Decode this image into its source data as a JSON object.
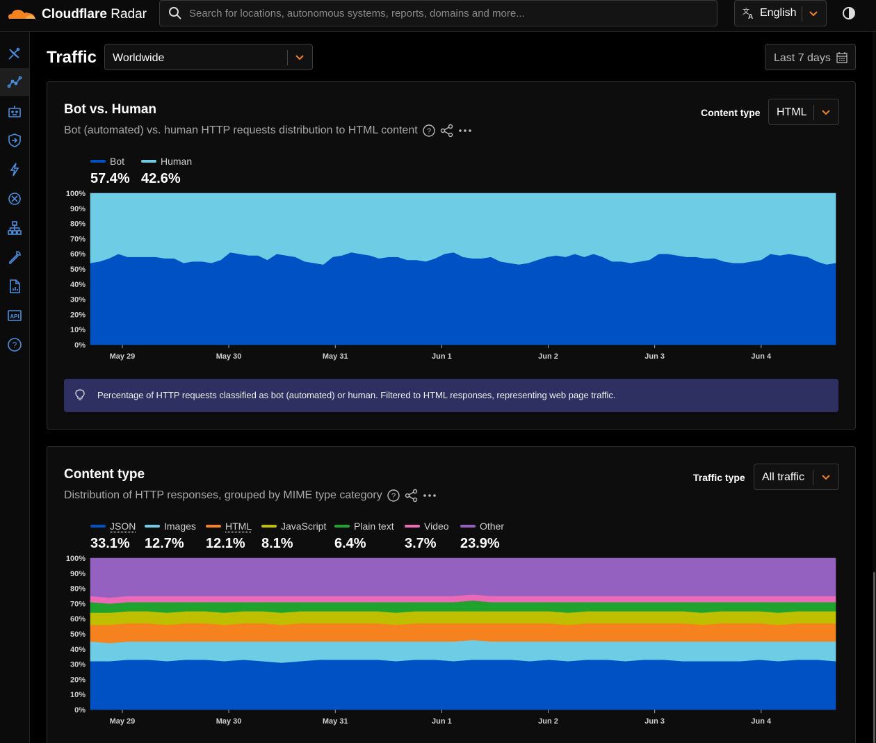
{
  "app": {
    "brand_main": "Cloudflare",
    "brand_sub": " Radar",
    "search_placeholder": "Search for locations, autonomous systems, reports, domains and more...",
    "language": "English",
    "accent_color": "#f6821f"
  },
  "sidebar": {
    "items": [
      {
        "icon": "satellite-dish-icon",
        "active": false
      },
      {
        "icon": "traffic-trend-icon",
        "active": true
      },
      {
        "icon": "robot-icon",
        "active": false
      },
      {
        "icon": "shield-arrow-icon",
        "active": false
      },
      {
        "icon": "lightning-icon",
        "active": false
      },
      {
        "icon": "connectivity-icon",
        "active": false
      },
      {
        "icon": "network-tree-icon",
        "active": false
      },
      {
        "icon": "wrench-icon",
        "active": false
      },
      {
        "icon": "report-icon",
        "active": false
      },
      {
        "icon": "api-icon",
        "active": false
      },
      {
        "icon": "help-icon",
        "active": false
      }
    ]
  },
  "page": {
    "title": "Traffic",
    "location": "Worldwide",
    "date_range": "Last 7 days"
  },
  "bot_card": {
    "title": "Bot vs. Human",
    "subtitle": "Bot (automated) vs. human HTTP requests distribution to HTML content",
    "filter_label": "Content type",
    "filter_value": "HTML",
    "legend": [
      {
        "name": "Bot",
        "pct": "57.4%",
        "color": "#0051c3"
      },
      {
        "name": "Human",
        "pct": "42.6%",
        "color": "#6ecce5"
      }
    ],
    "info": "Percentage of HTTP requests classified as bot (automated) or human. Filtered to HTML responses, representing web page traffic."
  },
  "content_card": {
    "title": "Content type",
    "subtitle": "Distribution of HTTP responses, grouped by MIME type category",
    "filter_label": "Traffic type",
    "filter_value": "All traffic",
    "legend": [
      {
        "name": "JSON",
        "pct": "33.1%",
        "color": "#0051c3",
        "dotted": true
      },
      {
        "name": "Images",
        "pct": "12.7%",
        "color": "#6ecce5",
        "dotted": false
      },
      {
        "name": "HTML",
        "pct": "12.1%",
        "color": "#f6821f",
        "dotted": true
      },
      {
        "name": "JavaScript",
        "pct": "8.1%",
        "color": "#bfbf00",
        "dotted": false
      },
      {
        "name": "Plain text",
        "pct": "6.4%",
        "color": "#1fa32e",
        "dotted": false
      },
      {
        "name": "Video",
        "pct": "3.7%",
        "color": "#ec69b8",
        "dotted": false
      },
      {
        "name": "Other",
        "pct": "23.9%",
        "color": "#9461c1",
        "dotted": false
      }
    ]
  },
  "chart_data": [
    {
      "type": "area",
      "stacked": true,
      "x_ticks": [
        "May 29",
        "May 30",
        "May 31",
        "Jun 1",
        "Jun 2",
        "Jun 3",
        "Jun 4"
      ],
      "y_ticks": [
        "0%",
        "10%",
        "20%",
        "30%",
        "40%",
        "50%",
        "60%",
        "70%",
        "80%",
        "90%",
        "100%"
      ],
      "ylim": [
        0,
        100
      ],
      "x_tick_positions_days": [
        0.3,
        1.3,
        2.3,
        3.3,
        4.3,
        5.3,
        6.3
      ],
      "days_span": 7,
      "series": [
        {
          "name": "Bot",
          "color": "#0051c3",
          "values": [
            54,
            55,
            57,
            60,
            58,
            58,
            58,
            58,
            57,
            57,
            54,
            55,
            55,
            54,
            56,
            61,
            60,
            59,
            59,
            56,
            60,
            59,
            58,
            55,
            54,
            53,
            58,
            59,
            61,
            60,
            59,
            57,
            58,
            58,
            56,
            56,
            55,
            57,
            60,
            61,
            58,
            57,
            57,
            58,
            55,
            54,
            53,
            54,
            56,
            58,
            59,
            58,
            60,
            58,
            60,
            58,
            55,
            55,
            54,
            55,
            56,
            60,
            60,
            59,
            58,
            58,
            57,
            57,
            55,
            54,
            54,
            55,
            56,
            60,
            59,
            60,
            59,
            58,
            55,
            53,
            54
          ]
        },
        {
          "name": "Human",
          "color": "#6ecce5",
          "values": [
            46,
            45,
            43,
            40,
            42,
            42,
            42,
            42,
            43,
            43,
            46,
            45,
            45,
            46,
            44,
            39,
            40,
            41,
            41,
            44,
            40,
            41,
            42,
            45,
            46,
            47,
            42,
            41,
            39,
            40,
            41,
            43,
            42,
            42,
            44,
            44,
            45,
            43,
            40,
            39,
            42,
            43,
            43,
            42,
            45,
            46,
            47,
            46,
            44,
            42,
            41,
            42,
            40,
            42,
            40,
            42,
            45,
            45,
            46,
            45,
            44,
            40,
            40,
            41,
            42,
            42,
            43,
            43,
            45,
            46,
            46,
            45,
            44,
            40,
            41,
            40,
            41,
            42,
            45,
            47,
            46
          ]
        }
      ]
    },
    {
      "type": "area",
      "stacked": true,
      "x_ticks": [
        "May 29",
        "May 30",
        "May 31",
        "Jun 1",
        "Jun 2",
        "Jun 3",
        "Jun 4"
      ],
      "y_ticks": [
        "0%",
        "10%",
        "20%",
        "30%",
        "40%",
        "50%",
        "60%",
        "70%",
        "80%",
        "90%",
        "100%"
      ],
      "ylim": [
        0,
        100
      ],
      "x_tick_positions_days": [
        0.3,
        1.3,
        2.3,
        3.3,
        4.3,
        5.3,
        6.3
      ],
      "days_span": 7,
      "series": [
        {
          "name": "JSON",
          "color": "#0051c3",
          "values": [
            32,
            32,
            33,
            33,
            32,
            33,
            33,
            32,
            33,
            32,
            31,
            32,
            33,
            33,
            33,
            33,
            32,
            33,
            33,
            32,
            33,
            33,
            33,
            32,
            33,
            32,
            33,
            33,
            32,
            33,
            33,
            32,
            32,
            32,
            32,
            33,
            32,
            33,
            33,
            32
          ]
        },
        {
          "name": "Images",
          "color": "#6ecce5",
          "values": [
            13,
            12,
            12,
            12,
            13,
            12,
            12,
            13,
            12,
            13,
            14,
            13,
            12,
            12,
            12,
            12,
            13,
            12,
            12,
            13,
            13,
            12,
            12,
            13,
            12,
            13,
            12,
            12,
            13,
            12,
            12,
            13,
            13,
            13,
            13,
            12,
            13,
            12,
            12,
            13
          ]
        },
        {
          "name": "HTML",
          "color": "#f6821f",
          "values": [
            11,
            12,
            12,
            12,
            11,
            12,
            12,
            11,
            12,
            12,
            11,
            12,
            12,
            12,
            12,
            12,
            11,
            12,
            12,
            12,
            11,
            12,
            12,
            12,
            12,
            11,
            12,
            12,
            12,
            12,
            12,
            12,
            11,
            12,
            12,
            12,
            11,
            12,
            12,
            12
          ]
        },
        {
          "name": "JavaScript",
          "color": "#bfbf00",
          "values": [
            8,
            8,
            8,
            8,
            8,
            8,
            8,
            8,
            8,
            8,
            8,
            8,
            8,
            8,
            8,
            8,
            8,
            8,
            8,
            8,
            8,
            8,
            8,
            8,
            8,
            8,
            8,
            8,
            8,
            8,
            8,
            8,
            8,
            8,
            8,
            8,
            8,
            8,
            8,
            8
          ]
        },
        {
          "name": "Plain text",
          "color": "#1fa32e",
          "values": [
            7,
            6,
            6,
            6,
            7,
            6,
            6,
            7,
            6,
            6,
            7,
            6,
            6,
            6,
            6,
            6,
            7,
            6,
            6,
            6,
            7,
            6,
            6,
            6,
            6,
            7,
            6,
            6,
            6,
            6,
            6,
            6,
            7,
            6,
            6,
            6,
            7,
            6,
            6,
            6
          ]
        },
        {
          "name": "Video",
          "color": "#ec69b8",
          "values": [
            4,
            4,
            4,
            4,
            4,
            4,
            4,
            4,
            4,
            4,
            4,
            4,
            4,
            4,
            4,
            4,
            4,
            4,
            4,
            4,
            4,
            4,
            4,
            4,
            4,
            4,
            4,
            4,
            4,
            4,
            4,
            4,
            4,
            4,
            4,
            4,
            4,
            4,
            4,
            4
          ]
        },
        {
          "name": "Other",
          "color": "#9461c1",
          "values": [
            25,
            26,
            25,
            25,
            25,
            25,
            25,
            25,
            25,
            25,
            25,
            25,
            25,
            25,
            25,
            25,
            25,
            25,
            25,
            25,
            24,
            25,
            25,
            25,
            25,
            25,
            25,
            25,
            25,
            25,
            25,
            25,
            25,
            25,
            25,
            25,
            25,
            25,
            25,
            25
          ]
        }
      ]
    }
  ]
}
